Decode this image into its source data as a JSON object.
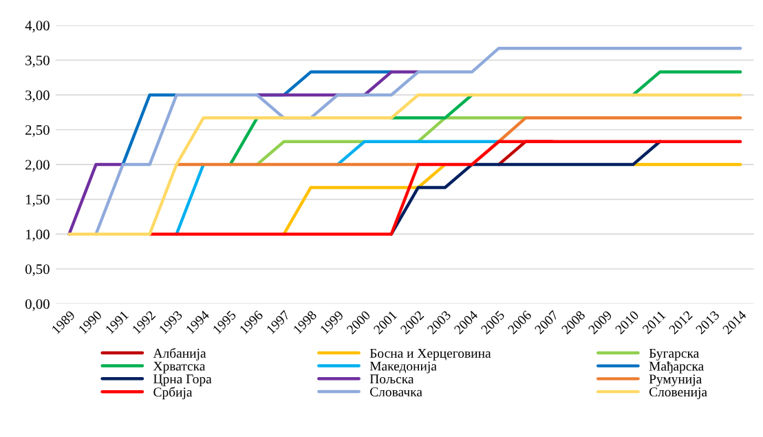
{
  "chart_data": {
    "type": "line",
    "categories": [
      "1989",
      "1990",
      "1991",
      "1992",
      "1993",
      "1994",
      "1995",
      "1996",
      "1997",
      "1998",
      "1999",
      "2000",
      "2001",
      "2002",
      "2003",
      "2004",
      "2005",
      "2006",
      "2007",
      "2008",
      "2009",
      "2010",
      "2011",
      "2012",
      "2013",
      "2014"
    ],
    "series": [
      {
        "name": "Албанија",
        "color": "#c00000",
        "values": [
          null,
          null,
          null,
          null,
          null,
          null,
          null,
          null,
          null,
          null,
          null,
          null,
          null,
          null,
          null,
          null,
          2,
          2.33,
          2.33,
          null,
          null,
          null,
          null,
          null,
          null,
          null
        ]
      },
      {
        "name": "Босна и Херцеговина",
        "color": "#ffc000",
        "values": [
          null,
          null,
          null,
          null,
          null,
          null,
          null,
          null,
          1,
          1.67,
          1.67,
          1.67,
          1.67,
          1.67,
          2,
          null,
          null,
          null,
          null,
          null,
          null,
          2,
          2,
          2,
          2,
          2
        ]
      },
      {
        "name": "Бугарска",
        "color": "#92d050",
        "values": [
          null,
          null,
          null,
          null,
          null,
          null,
          null,
          2,
          2.33,
          2.33,
          2.33,
          2.33,
          null,
          2.33,
          2.67,
          2.67,
          2.67,
          2.67,
          null,
          null,
          null,
          null,
          null,
          null,
          null,
          null
        ]
      },
      {
        "name": "Хрватска",
        "color": "#00b050",
        "values": [
          null,
          null,
          null,
          null,
          null,
          null,
          2,
          2.67,
          null,
          null,
          null,
          null,
          2.67,
          2.67,
          2.67,
          3,
          null,
          null,
          null,
          null,
          null,
          3,
          3.33,
          3.33,
          3.33,
          3.33
        ]
      },
      {
        "name": "Македонија",
        "color": "#00b0f0",
        "values": [
          null,
          null,
          null,
          null,
          1,
          2,
          null,
          null,
          null,
          null,
          2,
          2.33,
          2.33,
          2.33,
          2.33,
          2.33,
          2.33,
          null,
          null,
          null,
          null,
          null,
          null,
          null,
          null,
          null
        ]
      },
      {
        "name": "Мађарска",
        "color": "#0070c0",
        "values": [
          null,
          null,
          2,
          3,
          3,
          null,
          null,
          3,
          3,
          3.33,
          3.33,
          3.33,
          3.33,
          null,
          null,
          null,
          null,
          null,
          null,
          null,
          null,
          null,
          null,
          null,
          null,
          null
        ]
      },
      {
        "name": "Црна Гора",
        "color": "#002060",
        "values": [
          null,
          null,
          null,
          null,
          null,
          null,
          null,
          null,
          null,
          null,
          null,
          null,
          1,
          1.67,
          1.67,
          2,
          2,
          2,
          2,
          2,
          2,
          2,
          2.33,
          null,
          null,
          null
        ]
      },
      {
        "name": "Пољска",
        "color": "#7030a0",
        "values": [
          1,
          2,
          2,
          null,
          null,
          null,
          null,
          3,
          3,
          3,
          3,
          3,
          3.33,
          3.33,
          null,
          null,
          null,
          null,
          null,
          null,
          null,
          null,
          null,
          null,
          null,
          null
        ]
      },
      {
        "name": "Румунија",
        "color": "#ed7d31",
        "values": [
          null,
          null,
          null,
          null,
          2,
          2,
          2,
          2,
          2,
          2,
          2,
          2,
          2,
          2,
          null,
          2,
          2.33,
          2.67,
          2.67,
          2.67,
          2.67,
          2.67,
          2.67,
          2.67,
          2.67,
          2.67
        ]
      },
      {
        "name": "Србија",
        "color": "#ff0000",
        "values": [
          null,
          null,
          null,
          1,
          1,
          1,
          1,
          1,
          1,
          1,
          1,
          1,
          1,
          2,
          2,
          2,
          2.33,
          2.33,
          2.33,
          2.33,
          2.33,
          2.33,
          2.33,
          2.33,
          2.33,
          2.33
        ]
      },
      {
        "name": "Словачка",
        "color": "#8faadc",
        "values": [
          null,
          1,
          2,
          2,
          3,
          3,
          3,
          3,
          2.67,
          2.67,
          3,
          3,
          3,
          3.33,
          3.33,
          3.33,
          3.67,
          3.67,
          3.67,
          3.67,
          3.67,
          3.67,
          3.67,
          3.67,
          3.67,
          3.67
        ]
      },
      {
        "name": "Словенија",
        "color": "#ffd966",
        "values": [
          1,
          1,
          1,
          1,
          2,
          2.67,
          2.67,
          2.67,
          2.67,
          2.67,
          2.67,
          2.67,
          2.67,
          3,
          3,
          3,
          3,
          3,
          3,
          3,
          3,
          3,
          3,
          3,
          3,
          3
        ]
      }
    ],
    "ylim": [
      0,
      4
    ],
    "yticks": [
      {
        "value": 0,
        "label": "0,00"
      },
      {
        "value": 0.5,
        "label": "0,50"
      },
      {
        "value": 1,
        "label": "1,00"
      },
      {
        "value": 1.5,
        "label": "1,50"
      },
      {
        "value": 2,
        "label": "2,00"
      },
      {
        "value": 2.5,
        "label": "2,50"
      },
      {
        "value": 3,
        "label": "3,00"
      },
      {
        "value": 3.5,
        "label": "3,50"
      },
      {
        "value": 4,
        "label": "4,00"
      }
    ],
    "grid": "y",
    "legend": "bottom",
    "marker": "none",
    "line_style": "solid"
  }
}
